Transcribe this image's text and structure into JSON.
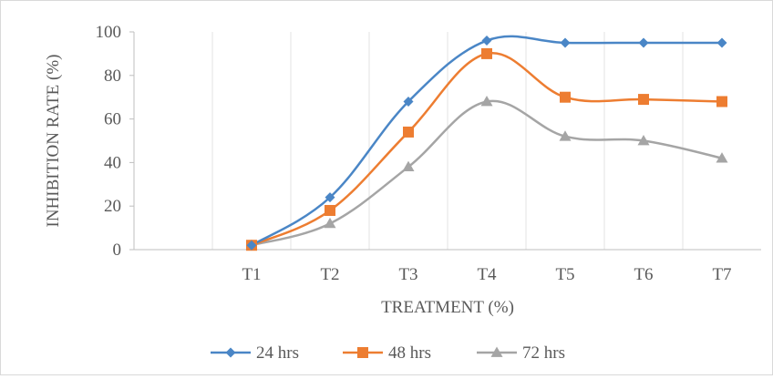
{
  "chart_data": {
    "type": "line",
    "categories": [
      "",
      "T1",
      "T2",
      "T3",
      "T4",
      "T5",
      "T6",
      "T7"
    ],
    "series": [
      {
        "name": "24 hrs",
        "color": "#4a86c6",
        "marker": "diamond",
        "values": [
          null,
          2,
          24,
          68,
          96,
          95,
          95,
          95
        ]
      },
      {
        "name": "48 hrs",
        "color": "#ed7d31",
        "marker": "square",
        "values": [
          null,
          2,
          18,
          54,
          90,
          70,
          69,
          68
        ]
      },
      {
        "name": "72 hrs",
        "color": "#a5a5a5",
        "marker": "triangle",
        "values": [
          null,
          2,
          12,
          38,
          68,
          52,
          50,
          42
        ]
      }
    ],
    "xlabel": "TREATMENT (%)",
    "ylabel": "INHIBITION RATE (%)",
    "ylim": [
      0,
      100
    ],
    "yticks": [
      "0",
      "20",
      "40",
      "60",
      "80",
      "100"
    ],
    "grid": "vertical",
    "legend": "bottom"
  }
}
